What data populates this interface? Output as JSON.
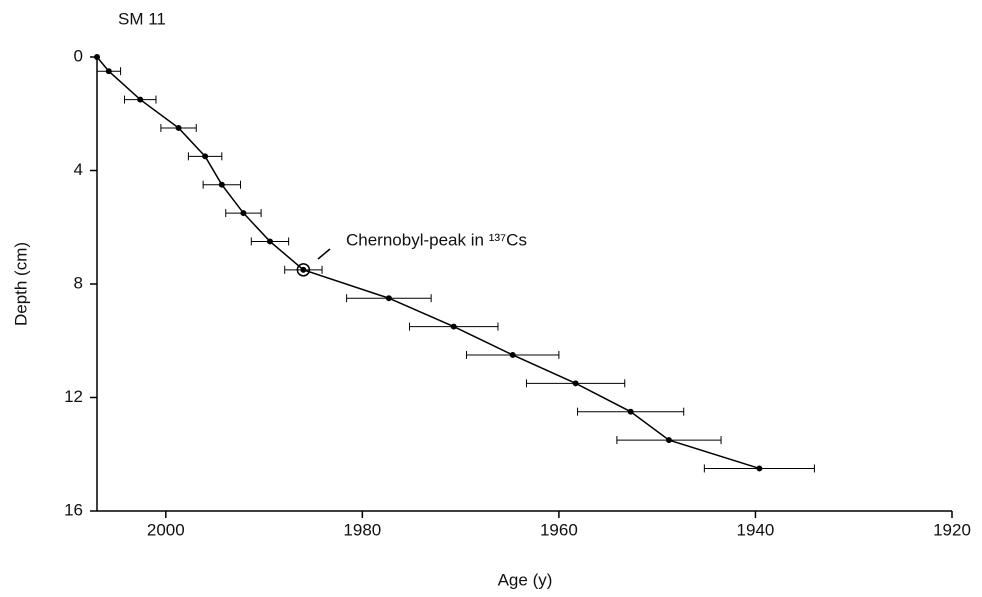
{
  "chart_data": {
    "type": "scatter",
    "title": "SM 11",
    "xlabel": "Age (y)",
    "ylabel": "Depth (cm)",
    "annotation": "Chernobyl-peak in ¹³⁷Cs",
    "x": [
      2007,
      2005.8,
      2002.6,
      1998.7,
      1996.0,
      1994.3,
      1992.1,
      1989.4,
      1986.0,
      1977.3,
      1970.7,
      1964.7,
      1958.3,
      1952.7,
      1948.8,
      1939.6
    ],
    "values": [
      0,
      0.5,
      1.5,
      2.5,
      3.5,
      4.5,
      5.5,
      6.5,
      7.5,
      8.5,
      9.5,
      10.5,
      11.5,
      12.5,
      13.5,
      14.5
    ],
    "x_err": [
      null,
      1.2,
      1.6,
      1.8,
      1.7,
      1.9,
      1.8,
      1.9,
      1.9,
      4.3,
      4.5,
      4.7,
      5.0,
      5.4,
      5.3,
      5.6
    ],
    "color": "#000000",
    "xlim": [
      2007,
      1920
    ],
    "xticks": [
      2000,
      1980,
      1960,
      1940,
      1920
    ],
    "ylim": [
      0,
      16
    ],
    "yticks": [
      0,
      4,
      8,
      12,
      16
    ],
    "y_inverted": true
  }
}
